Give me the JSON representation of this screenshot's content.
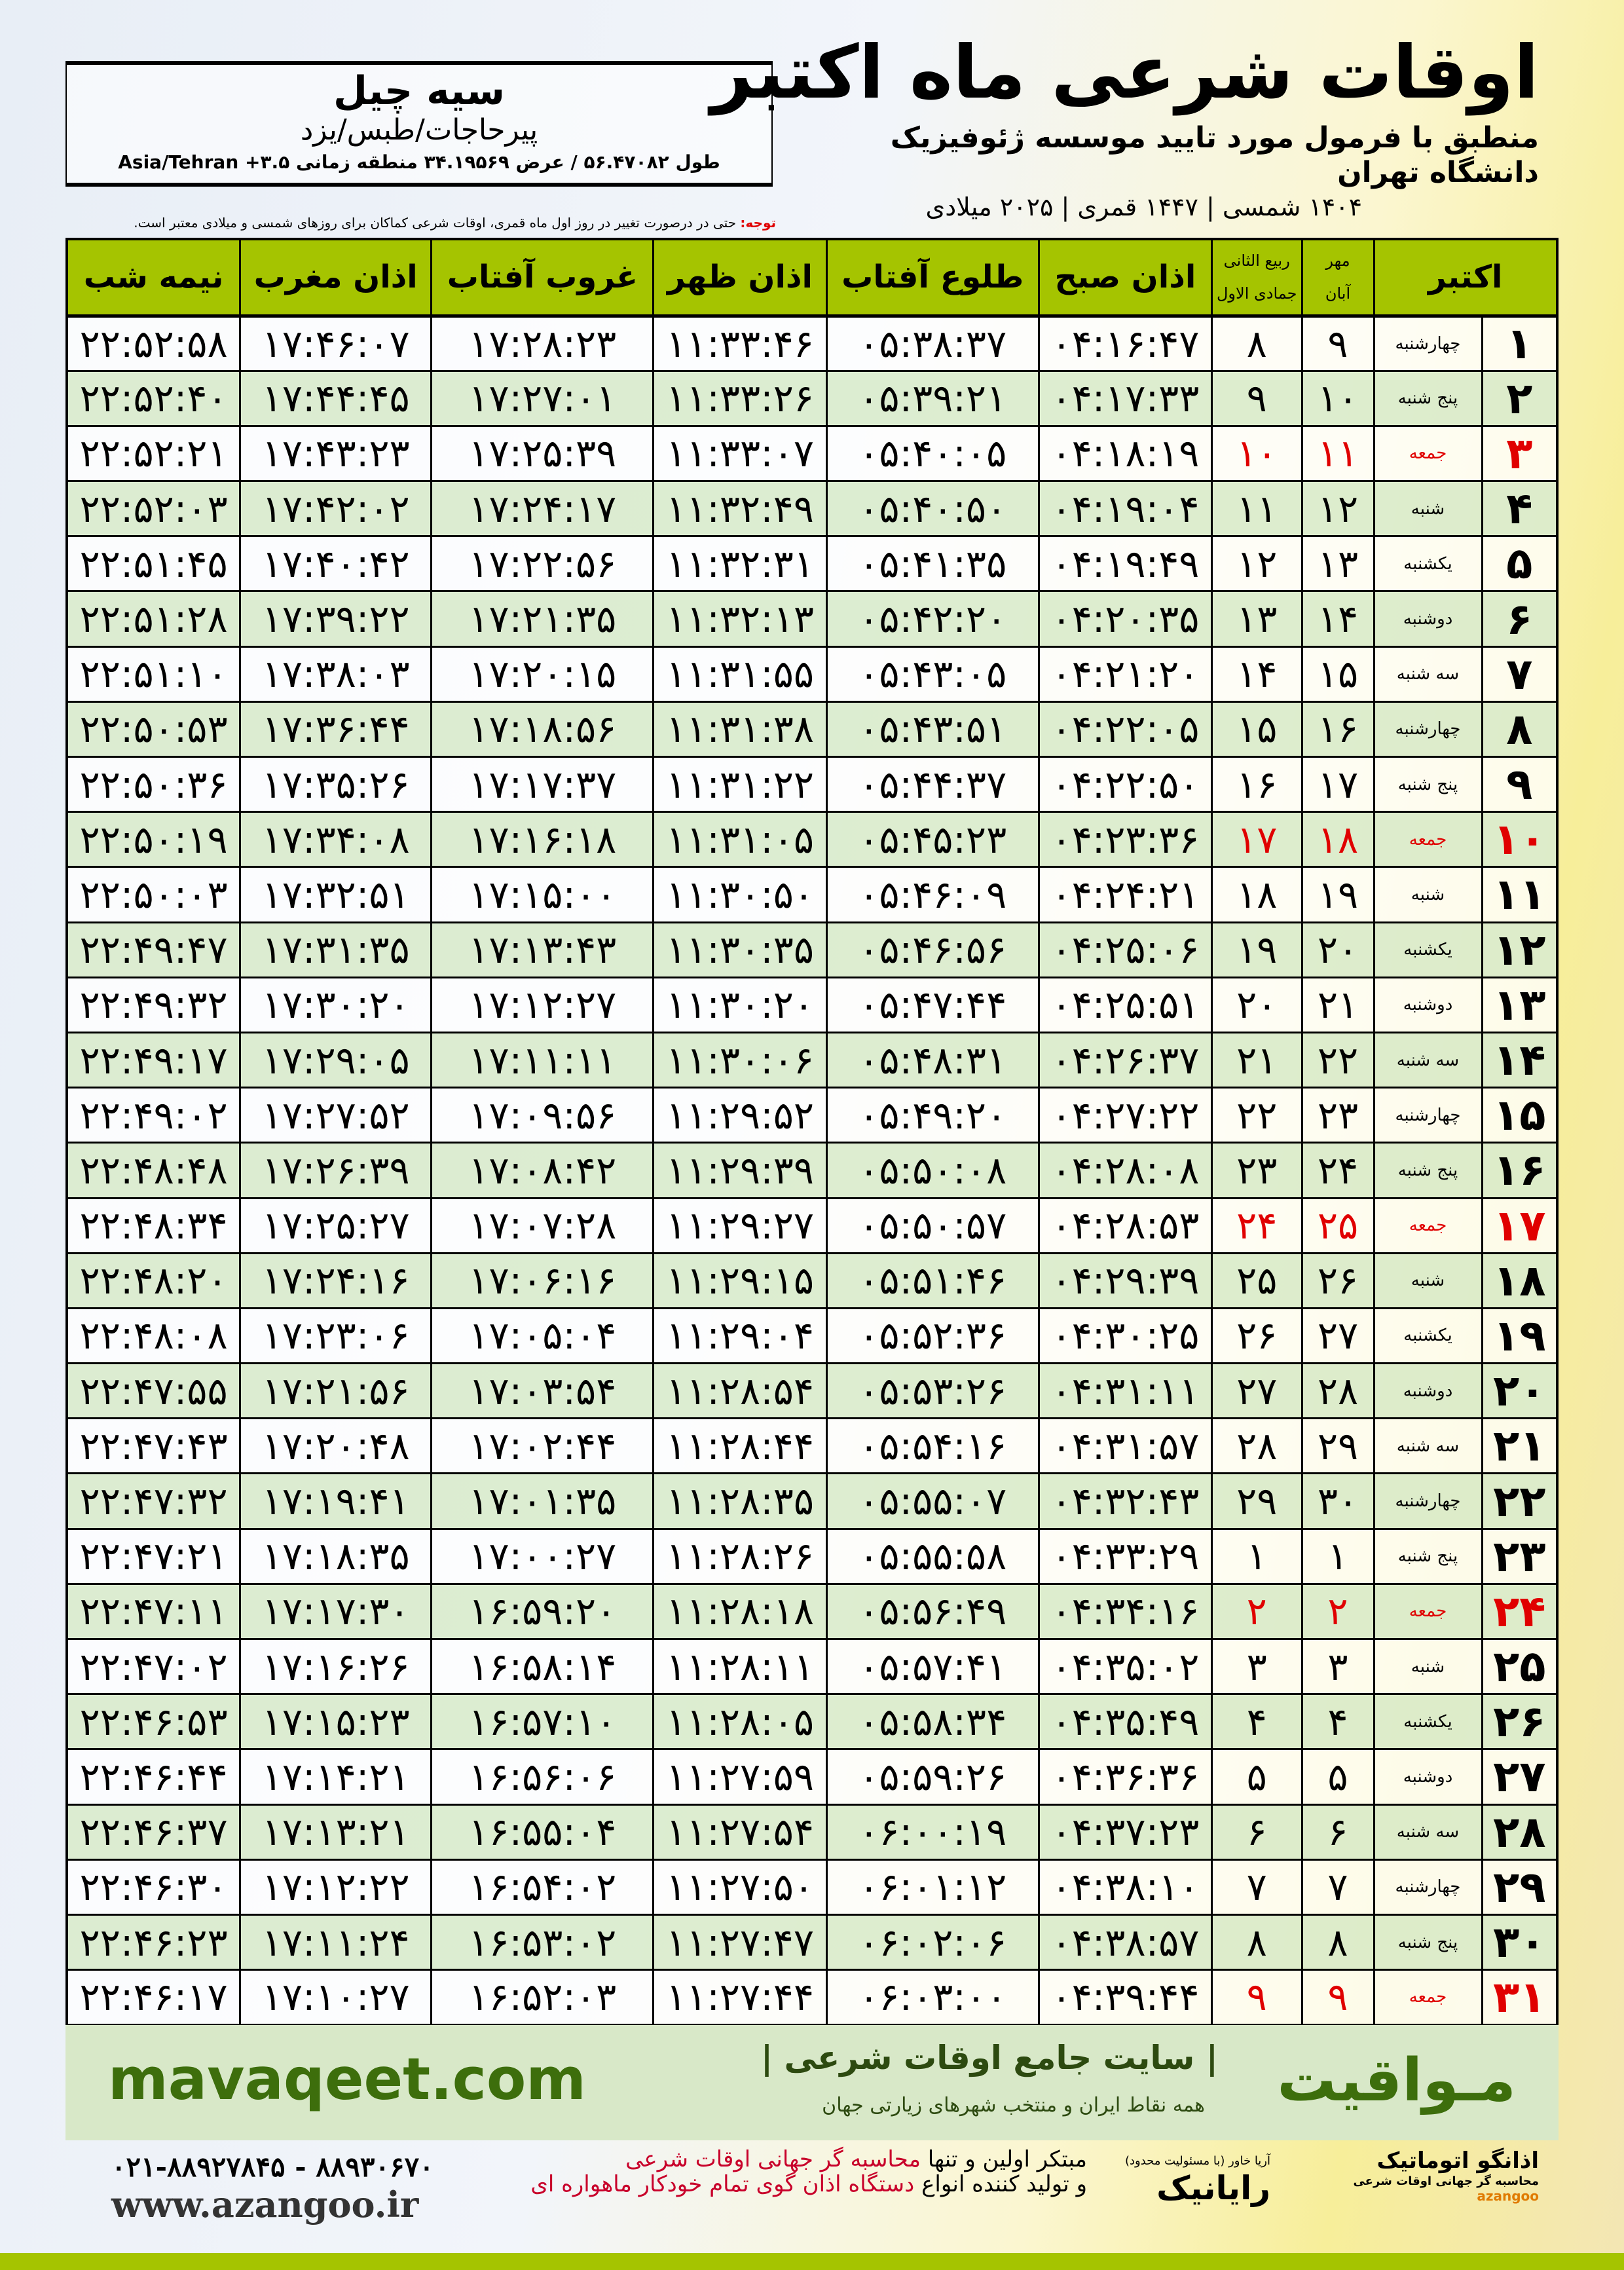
{
  "header": {
    "title": "اوقات شرعی ماه اکتبر",
    "subtitle": "منطبق با فرمول مورد تایید موسسه ژئوفیزیک دانشگاه تهران",
    "years": "۱۴۰۴ شمسی | ۱۴۴۷ قمری | ۲۰۲۵ میلادی"
  },
  "location": {
    "city": "سیه چیل",
    "route": "پیرحاجات/طبس/یزد",
    "coords": "طول ۵۶.۴۷۰۸۲ / عرض ۳۴.۱۹۵۶۹ منطقه زمانی ۳.۵+ Asia/Tehran"
  },
  "note": {
    "label": "توجه:",
    "text": " حتی در درصورت تغییر در روز اول ماه قمری، اوقات شرعی کماکان برای روزهای شمسی و میلادی معتبر است."
  },
  "colors": {
    "header_green": "#a5c400",
    "row_green": "#daebcd",
    "friday_red": "#e00000",
    "brand_green": "#3d6e0c"
  },
  "table": {
    "headers": {
      "month": "اکتبر",
      "shamsi_top": "مهر",
      "shamsi_bottom": "آبان",
      "hijri_top": "ربیع الثانی",
      "hijri_bottom": "جمادی الاول",
      "sobh": "اذان صبح",
      "tolu": "طلوع آفتاب",
      "zohr": "اذان ظهر",
      "ghorub": "غروب آفتاب",
      "maghreb": "اذان مغرب",
      "nime": "نیمه شب"
    },
    "rows": [
      [
        "۱",
        "چهارشنبه",
        "۹",
        "۸",
        "۰۴:۱۶:۴۷",
        "۰۵:۳۸:۳۷",
        "۱۱:۳۳:۴۶",
        "۱۷:۲۸:۲۳",
        "۱۷:۴۶:۰۷",
        "۲۲:۵۲:۵۸"
      ],
      [
        "۲",
        "پنج شنبه",
        "۱۰",
        "۹",
        "۰۴:۱۷:۳۳",
        "۰۵:۳۹:۲۱",
        "۱۱:۳۳:۲۶",
        "۱۷:۲۷:۰۱",
        "۱۷:۴۴:۴۵",
        "۲۲:۵۲:۴۰"
      ],
      [
        "۳",
        "جمعه",
        "۱۱",
        "۱۰",
        "۰۴:۱۸:۱۹",
        "۰۵:۴۰:۰۵",
        "۱۱:۳۳:۰۷",
        "۱۷:۲۵:۳۹",
        "۱۷:۴۳:۲۳",
        "۲۲:۵۲:۲۱"
      ],
      [
        "۴",
        "شنبه",
        "۱۲",
        "۱۱",
        "۰۴:۱۹:۰۴",
        "۰۵:۴۰:۵۰",
        "۱۱:۳۲:۴۹",
        "۱۷:۲۴:۱۷",
        "۱۷:۴۲:۰۲",
        "۲۲:۵۲:۰۳"
      ],
      [
        "۵",
        "یکشنبه",
        "۱۳",
        "۱۲",
        "۰۴:۱۹:۴۹",
        "۰۵:۴۱:۳۵",
        "۱۱:۳۲:۳۱",
        "۱۷:۲۲:۵۶",
        "۱۷:۴۰:۴۲",
        "۲۲:۵۱:۴۵"
      ],
      [
        "۶",
        "دوشنبه",
        "۱۴",
        "۱۳",
        "۰۴:۲۰:۳۵",
        "۰۵:۴۲:۲۰",
        "۱۱:۳۲:۱۳",
        "۱۷:۲۱:۳۵",
        "۱۷:۳۹:۲۲",
        "۲۲:۵۱:۲۸"
      ],
      [
        "۷",
        "سه شنبه",
        "۱۵",
        "۱۴",
        "۰۴:۲۱:۲۰",
        "۰۵:۴۳:۰۵",
        "۱۱:۳۱:۵۵",
        "۱۷:۲۰:۱۵",
        "۱۷:۳۸:۰۳",
        "۲۲:۵۱:۱۰"
      ],
      [
        "۸",
        "چهارشنبه",
        "۱۶",
        "۱۵",
        "۰۴:۲۲:۰۵",
        "۰۵:۴۳:۵۱",
        "۱۱:۳۱:۳۸",
        "۱۷:۱۸:۵۶",
        "۱۷:۳۶:۴۴",
        "۲۲:۵۰:۵۳"
      ],
      [
        "۹",
        "پنج شنبه",
        "۱۷",
        "۱۶",
        "۰۴:۲۲:۵۰",
        "۰۵:۴۴:۳۷",
        "۱۱:۳۱:۲۲",
        "۱۷:۱۷:۳۷",
        "۱۷:۳۵:۲۶",
        "۲۲:۵۰:۳۶"
      ],
      [
        "۱۰",
        "جمعه",
        "۱۸",
        "۱۷",
        "۰۴:۲۳:۳۶",
        "۰۵:۴۵:۲۳",
        "۱۱:۳۱:۰۵",
        "۱۷:۱۶:۱۸",
        "۱۷:۳۴:۰۸",
        "۲۲:۵۰:۱۹"
      ],
      [
        "۱۱",
        "شنبه",
        "۱۹",
        "۱۸",
        "۰۴:۲۴:۲۱",
        "۰۵:۴۶:۰۹",
        "۱۱:۳۰:۵۰",
        "۱۷:۱۵:۰۰",
        "۱۷:۳۲:۵۱",
        "۲۲:۵۰:۰۳"
      ],
      [
        "۱۲",
        "یکشنبه",
        "۲۰",
        "۱۹",
        "۰۴:۲۵:۰۶",
        "۰۵:۴۶:۵۶",
        "۱۱:۳۰:۳۵",
        "۱۷:۱۳:۴۳",
        "۱۷:۳۱:۳۵",
        "۲۲:۴۹:۴۷"
      ],
      [
        "۱۳",
        "دوشنبه",
        "۲۱",
        "۲۰",
        "۰۴:۲۵:۵۱",
        "۰۵:۴۷:۴۴",
        "۱۱:۳۰:۲۰",
        "۱۷:۱۲:۲۷",
        "۱۷:۳۰:۲۰",
        "۲۲:۴۹:۳۲"
      ],
      [
        "۱۴",
        "سه شنبه",
        "۲۲",
        "۲۱",
        "۰۴:۲۶:۳۷",
        "۰۵:۴۸:۳۱",
        "۱۱:۳۰:۰۶",
        "۱۷:۱۱:۱۱",
        "۱۷:۲۹:۰۵",
        "۲۲:۴۹:۱۷"
      ],
      [
        "۱۵",
        "چهارشنبه",
        "۲۳",
        "۲۲",
        "۰۴:۲۷:۲۲",
        "۰۵:۴۹:۲۰",
        "۱۱:۲۹:۵۲",
        "۱۷:۰۹:۵۶",
        "۱۷:۲۷:۵۲",
        "۲۲:۴۹:۰۲"
      ],
      [
        "۱۶",
        "پنج شنبه",
        "۲۴",
        "۲۳",
        "۰۴:۲۸:۰۸",
        "۰۵:۵۰:۰۸",
        "۱۱:۲۹:۳۹",
        "۱۷:۰۸:۴۲",
        "۱۷:۲۶:۳۹",
        "۲۲:۴۸:۴۸"
      ],
      [
        "۱۷",
        "جمعه",
        "۲۵",
        "۲۴",
        "۰۴:۲۸:۵۳",
        "۰۵:۵۰:۵۷",
        "۱۱:۲۹:۲۷",
        "۱۷:۰۷:۲۸",
        "۱۷:۲۵:۲۷",
        "۲۲:۴۸:۳۴"
      ],
      [
        "۱۸",
        "شنبه",
        "۲۶",
        "۲۵",
        "۰۴:۲۹:۳۹",
        "۰۵:۵۱:۴۶",
        "۱۱:۲۹:۱۵",
        "۱۷:۰۶:۱۶",
        "۱۷:۲۴:۱۶",
        "۲۲:۴۸:۲۰"
      ],
      [
        "۱۹",
        "یکشنبه",
        "۲۷",
        "۲۶",
        "۰۴:۳۰:۲۵",
        "۰۵:۵۲:۳۶",
        "۱۱:۲۹:۰۴",
        "۱۷:۰۵:۰۴",
        "۱۷:۲۳:۰۶",
        "۲۲:۴۸:۰۸"
      ],
      [
        "۲۰",
        "دوشنبه",
        "۲۸",
        "۲۷",
        "۰۴:۳۱:۱۱",
        "۰۵:۵۳:۲۶",
        "۱۱:۲۸:۵۴",
        "۱۷:۰۳:۵۴",
        "۱۷:۲۱:۵۶",
        "۲۲:۴۷:۵۵"
      ],
      [
        "۲۱",
        "سه شنبه",
        "۲۹",
        "۲۸",
        "۰۴:۳۱:۵۷",
        "۰۵:۵۴:۱۶",
        "۱۱:۲۸:۴۴",
        "۱۷:۰۲:۴۴",
        "۱۷:۲۰:۴۸",
        "۲۲:۴۷:۴۳"
      ],
      [
        "۲۲",
        "چهارشنبه",
        "۳۰",
        "۲۹",
        "۰۴:۳۲:۴۳",
        "۰۵:۵۵:۰۷",
        "۱۱:۲۸:۳۵",
        "۱۷:۰۱:۳۵",
        "۱۷:۱۹:۴۱",
        "۲۲:۴۷:۳۲"
      ],
      [
        "۲۳",
        "پنج شنبه",
        "۱",
        "۱",
        "۰۴:۳۳:۲۹",
        "۰۵:۵۵:۵۸",
        "۱۱:۲۸:۲۶",
        "۱۷:۰۰:۲۷",
        "۱۷:۱۸:۳۵",
        "۲۲:۴۷:۲۱"
      ],
      [
        "۲۴",
        "جمعه",
        "۲",
        "۲",
        "۰۴:۳۴:۱۶",
        "۰۵:۵۶:۴۹",
        "۱۱:۲۸:۱۸",
        "۱۶:۵۹:۲۰",
        "۱۷:۱۷:۳۰",
        "۲۲:۴۷:۱۱"
      ],
      [
        "۲۵",
        "شنبه",
        "۳",
        "۳",
        "۰۴:۳۵:۰۲",
        "۰۵:۵۷:۴۱",
        "۱۱:۲۸:۱۱",
        "۱۶:۵۸:۱۴",
        "۱۷:۱۶:۲۶",
        "۲۲:۴۷:۰۲"
      ],
      [
        "۲۶",
        "یکشنبه",
        "۴",
        "۴",
        "۰۴:۳۵:۴۹",
        "۰۵:۵۸:۳۴",
        "۱۱:۲۸:۰۵",
        "۱۶:۵۷:۱۰",
        "۱۷:۱۵:۲۳",
        "۲۲:۴۶:۵۳"
      ],
      [
        "۲۷",
        "دوشنبه",
        "۵",
        "۵",
        "۰۴:۳۶:۳۶",
        "۰۵:۵۹:۲۶",
        "۱۱:۲۷:۵۹",
        "۱۶:۵۶:۰۶",
        "۱۷:۱۴:۲۱",
        "۲۲:۴۶:۴۴"
      ],
      [
        "۲۸",
        "سه شنبه",
        "۶",
        "۶",
        "۰۴:۳۷:۲۳",
        "۰۶:۰۰:۱۹",
        "۱۱:۲۷:۵۴",
        "۱۶:۵۵:۰۴",
        "۱۷:۱۳:۲۱",
        "۲۲:۴۶:۳۷"
      ],
      [
        "۲۹",
        "چهارشنبه",
        "۷",
        "۷",
        "۰۴:۳۸:۱۰",
        "۰۶:۰۱:۱۲",
        "۱۱:۲۷:۵۰",
        "۱۶:۵۴:۰۲",
        "۱۷:۱۲:۲۲",
        "۲۲:۴۶:۳۰"
      ],
      [
        "۳۰",
        "پنج شنبه",
        "۸",
        "۸",
        "۰۴:۳۸:۵۷",
        "۰۶:۰۲:۰۶",
        "۱۱:۲۷:۴۷",
        "۱۶:۵۳:۰۲",
        "۱۷:۱۱:۲۴",
        "۲۲:۴۶:۲۳"
      ],
      [
        "۳۱",
        "جمعه",
        "۹",
        "۹",
        "۰۴:۳۹:۴۴",
        "۰۶:۰۳:۰۰",
        "۱۱:۲۷:۴۴",
        "۱۶:۵۲:۰۳",
        "۱۷:۱۰:۲۷",
        "۲۲:۴۶:۱۷"
      ]
    ]
  },
  "footer": {
    "brand": "مـواقیت",
    "tagline": "| سایت جامع اوقات شرعی |",
    "tagline2": "همه نقاط ایران و منتخب شهرهای زیارتی جهان",
    "site": "mavaqeet.com",
    "logo1": "اذانگو اتوماتیک",
    "logo1_sub": "محاسبه گر جهانی اوقات شرعی",
    "logo1_en": "azangoo",
    "logo2": "رایانیک",
    "logo2_sub": "آریا خاور (با مسئولیت محدود)",
    "slogan1_a": "مبتکر اولین و تنها ",
    "slogan1_b": "محاسبه گر جهانی اوقات شرعی",
    "slogan2_a": "و تولید کننده انواع ",
    "slogan2_b": "دستگاه اذان گوی تمام خودکار ماهواره ای",
    "phone": "۰۲۱-۸۸۹۲۷۸۴۵ - ۸۸۹۳۰۶۷۰",
    "www": "www.azangoo.ir"
  }
}
